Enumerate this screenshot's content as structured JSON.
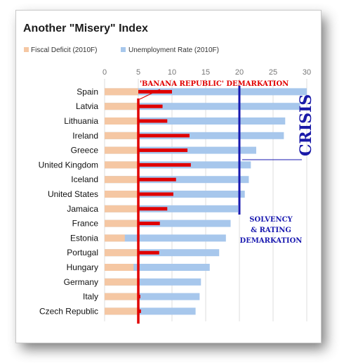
{
  "chart_data": {
    "type": "bar",
    "title": "Another \"Misery\" Index",
    "legend": [
      {
        "name": "Fiscal Deficit (2010F)",
        "color": "#f5c7a3"
      },
      {
        "name": "Unemployment Rate (2010F)",
        "color": "#a7c7ec"
      }
    ],
    "xlim": [
      0,
      30
    ],
    "x_ticks": [
      "0",
      "5",
      "10",
      "15",
      "20",
      "25",
      "30"
    ],
    "x_tick_values": [
      0,
      5,
      10,
      15,
      20,
      25,
      30
    ],
    "categories": [
      "Spain",
      "Latvia",
      "Lithuania",
      "Ireland",
      "Greece",
      "United Kingdom",
      "Iceland",
      "United States",
      "Jamaica",
      "France",
      "Estonia",
      "Portugal",
      "Hungary",
      "Germany",
      "Italy",
      "Czech Republic"
    ],
    "series": [
      {
        "name": "Fiscal Deficit (2010F)",
        "values": [
          10.0,
          8.6,
          9.3,
          12.6,
          12.3,
          12.8,
          10.6,
          10.2,
          9.3,
          8.2,
          3.0,
          8.1,
          4.3,
          5.0,
          5.3,
          5.4
        ]
      },
      {
        "name": "Unemployment Rate (2010F)",
        "values": [
          30.0,
          29.0,
          26.8,
          26.6,
          22.5,
          21.7,
          21.4,
          20.8,
          19.8,
          18.7,
          18.0,
          17.0,
          15.6,
          14.3,
          14.1,
          13.5
        ]
      }
    ],
    "thresholds": [
      {
        "name": "banana",
        "value": 5,
        "color": "#e00000"
      },
      {
        "name": "solvency",
        "value": 20,
        "color": "#1a1ab0"
      }
    ],
    "bar_overlay_color": "#e00000",
    "grid": true,
    "legend_position": "top-left",
    "annotations": {
      "banana": "'BANANA REPUBLIC' DEMARKATION",
      "crisis": "CRISIS",
      "solvency_lines": [
        "SOLVENCY",
        "& RATING",
        "DEMARKATION"
      ]
    }
  }
}
